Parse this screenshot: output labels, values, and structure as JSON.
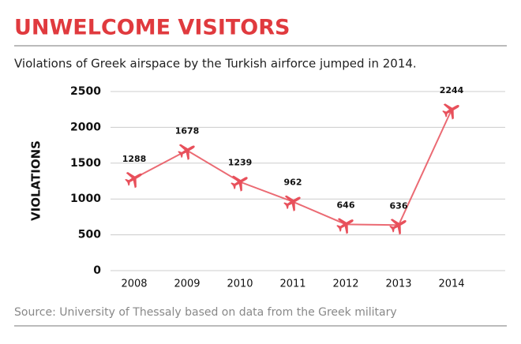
{
  "chart_data": {
    "type": "line",
    "title": "UNWELCOME VISITORS",
    "subtitle": "Violations of Greek airspace by the Turkish airforce jumped in 2014.",
    "y_label": "VIOLATIONS",
    "source": "Source: University of Thessaly based on data from the Greek military",
    "categories": [
      "2008",
      "2009",
      "2010",
      "2011",
      "2012",
      "2013",
      "2014"
    ],
    "series": [
      {
        "name": "Violations",
        "color": "#e8505b",
        "values": [
          1288,
          1678,
          1239,
          962,
          646,
          636,
          2244
        ]
      }
    ],
    "ylim": [
      0,
      2500
    ],
    "yticks": [
      0,
      500,
      1000,
      1500,
      2000,
      2500
    ],
    "grid": true
  }
}
